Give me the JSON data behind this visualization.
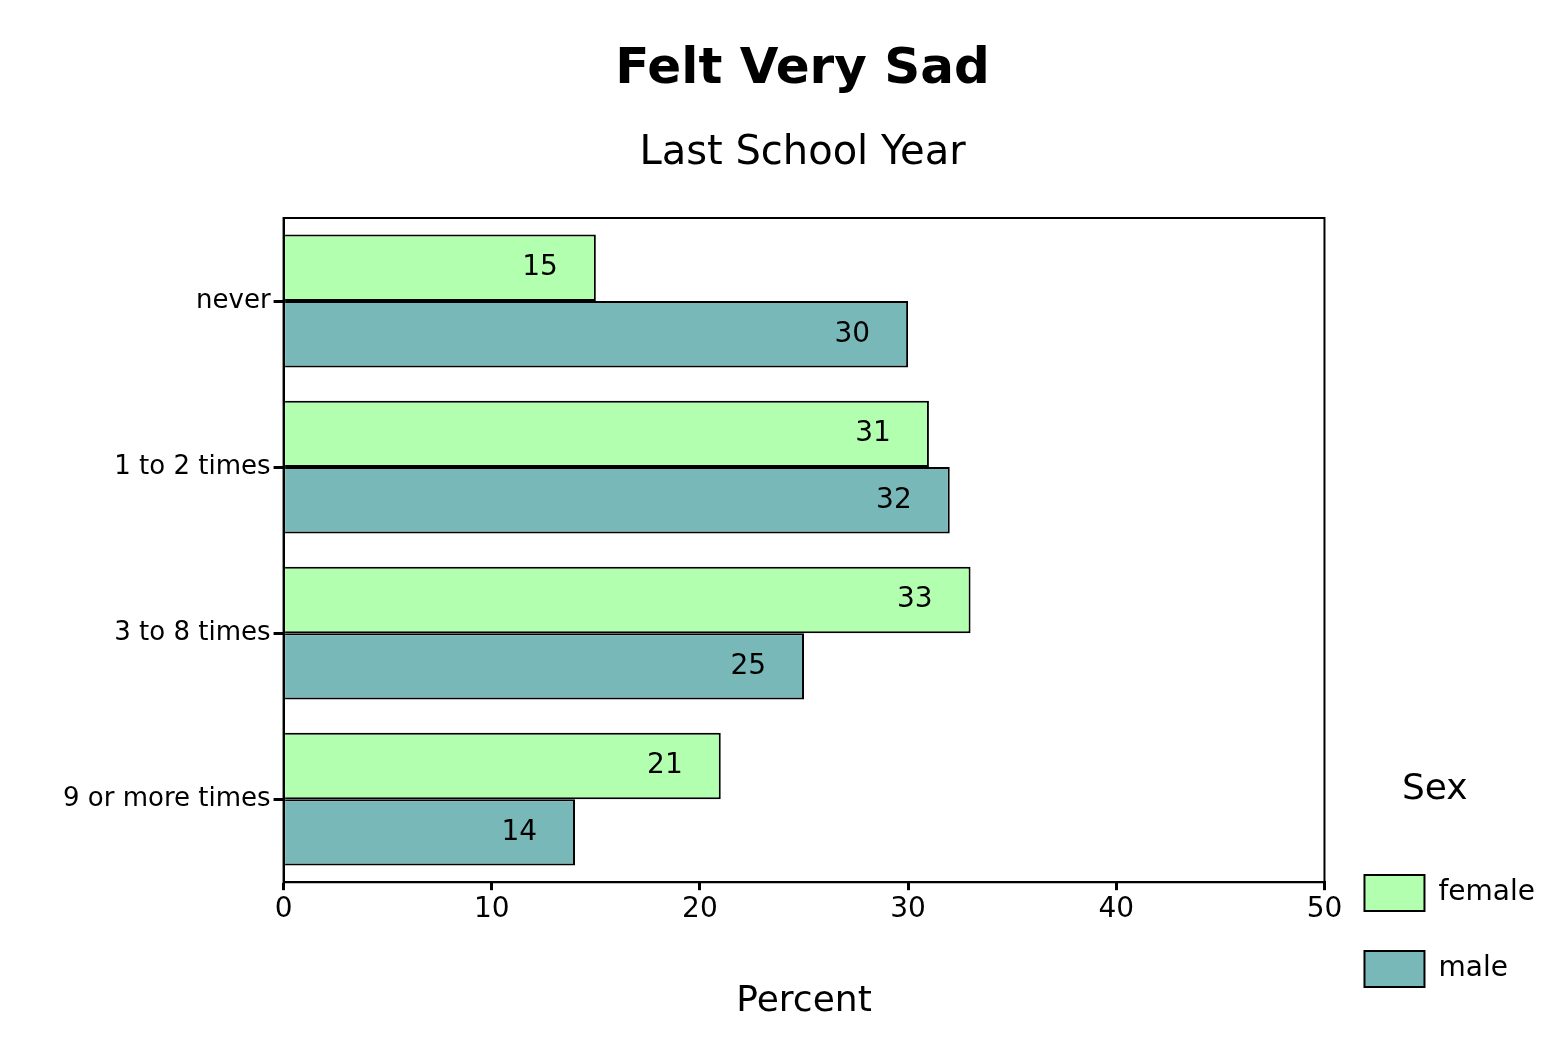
{
  "chart_data": {
    "type": "bar",
    "orientation": "horizontal",
    "title": "Felt Very Sad",
    "subtitle": "Last School Year",
    "xlabel": "Percent",
    "legend_title": "Sex",
    "categories": [
      "never",
      "1 to 2 times",
      "3 to 8 times",
      "9 or more times"
    ],
    "series": [
      {
        "name": "female",
        "color": "#b3ffb0",
        "values": [
          15,
          31,
          33,
          21
        ]
      },
      {
        "name": "male",
        "color": "#78b8b8",
        "values": [
          30,
          32,
          25,
          14
        ]
      }
    ],
    "xlim": [
      0,
      50
    ],
    "xticks": [
      0,
      10,
      20,
      30,
      40,
      50
    ],
    "grid": false,
    "legend": "bottom right",
    "data_labels": true
  }
}
